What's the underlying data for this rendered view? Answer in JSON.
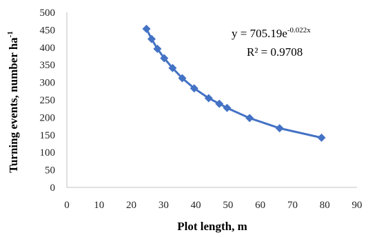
{
  "chart_data": {
    "type": "scatter",
    "xlabel": "Plot length, m",
    "ylabel": "Turning events, number ha",
    "ylabel_sup": "-1",
    "xlim": [
      0,
      90
    ],
    "ylim": [
      0,
      500
    ],
    "x_ticks": [
      "0",
      "10",
      "20",
      "30",
      "40",
      "50",
      "60",
      "70",
      "80",
      "90"
    ],
    "y_ticks": [
      "0",
      "50",
      "100",
      "150",
      "200",
      "250",
      "300",
      "350",
      "400",
      "450",
      "500"
    ],
    "grid": false,
    "series": [
      {
        "color": "#4472c4",
        "marker": "diamond",
        "connected": true,
        "points": [
          {
            "x": 24.7,
            "y": 453
          },
          {
            "x": 26.3,
            "y": 424
          },
          {
            "x": 28.1,
            "y": 396
          },
          {
            "x": 30.2,
            "y": 369
          },
          {
            "x": 32.8,
            "y": 341
          },
          {
            "x": 35.8,
            "y": 312
          },
          {
            "x": 39.5,
            "y": 283
          },
          {
            "x": 44.0,
            "y": 255
          },
          {
            "x": 47.3,
            "y": 239
          },
          {
            "x": 49.7,
            "y": 227
          },
          {
            "x": 56.7,
            "y": 198
          },
          {
            "x": 66.0,
            "y": 169
          },
          {
            "x": 79.0,
            "y": 142
          }
        ]
      }
    ],
    "annotation": {
      "eq_prefix": "y = 705.19e",
      "eq_exp": "-0.022x",
      "r2": "R² = 0.9708"
    }
  }
}
